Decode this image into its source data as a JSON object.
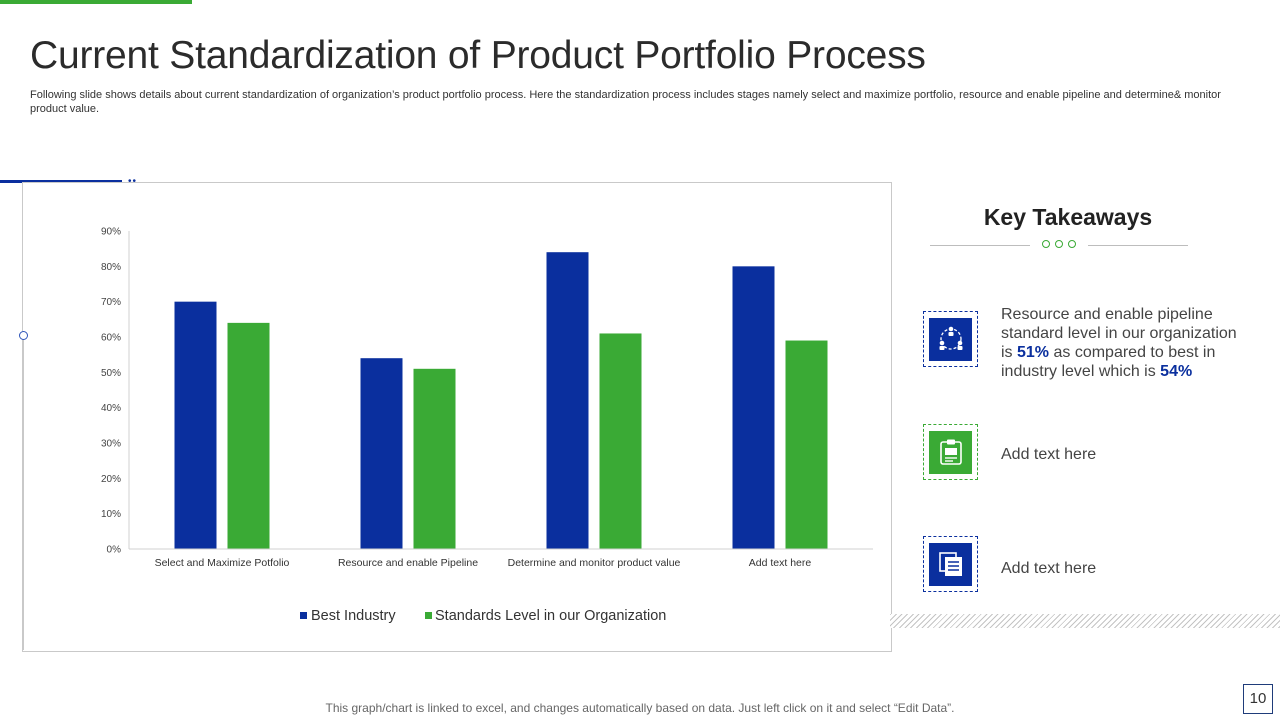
{
  "slide": {
    "title": "Current Standardization of Product Portfolio Process",
    "subtitle": "Following slide shows details about current standardization of organization’s product portfolio process. Here the standardization process includes stages namely select and maximize portfolio, resource and enable pipeline and determine& monitor product value.",
    "footer": "This graph/chart is linked to excel, and changes automatically based on data. Just left click on it and select “Edit Data”.",
    "page_number": "10"
  },
  "colors": {
    "blue": "#0a2f9e",
    "green": "#3aaa35"
  },
  "chart_data": {
    "type": "bar",
    "categories": [
      "Select and Maximize Potfolio",
      "Resource and enable Pipeline",
      "Determine and monitor product value",
      "Add text here"
    ],
    "series": [
      {
        "name": "Best Industry",
        "values": [
          70,
          54,
          84,
          80
        ],
        "color": "#0a2f9e"
      },
      {
        "name": "Standards Level in our Organization",
        "values": [
          64,
          51,
          61,
          59
        ],
        "color": "#3aaa35"
      }
    ],
    "yticks": [
      0,
      10,
      20,
      30,
      40,
      50,
      60,
      70,
      80,
      90
    ],
    "ytick_labels": [
      "0%",
      "10%",
      "20%",
      "30%",
      "40%",
      "50%",
      "60%",
      "70%",
      "80%",
      "90%"
    ],
    "ylim": [
      0,
      90
    ],
    "legend_position": "bottom",
    "title": "",
    "xlabel": "",
    "ylabel": ""
  },
  "takeaways": {
    "title": "Key Takeaways",
    "items": [
      {
        "icon": "team-cycle-icon",
        "text_before": "Resource and enable pipeline standard level in our organization is ",
        "value_org": "51%",
        "text_middle": " as compared to best in industry level which is ",
        "value_best": "54%"
      },
      {
        "icon": "clipboard-icon",
        "text": "Add text here"
      },
      {
        "icon": "documents-icon",
        "text": "Add text here"
      }
    ]
  }
}
